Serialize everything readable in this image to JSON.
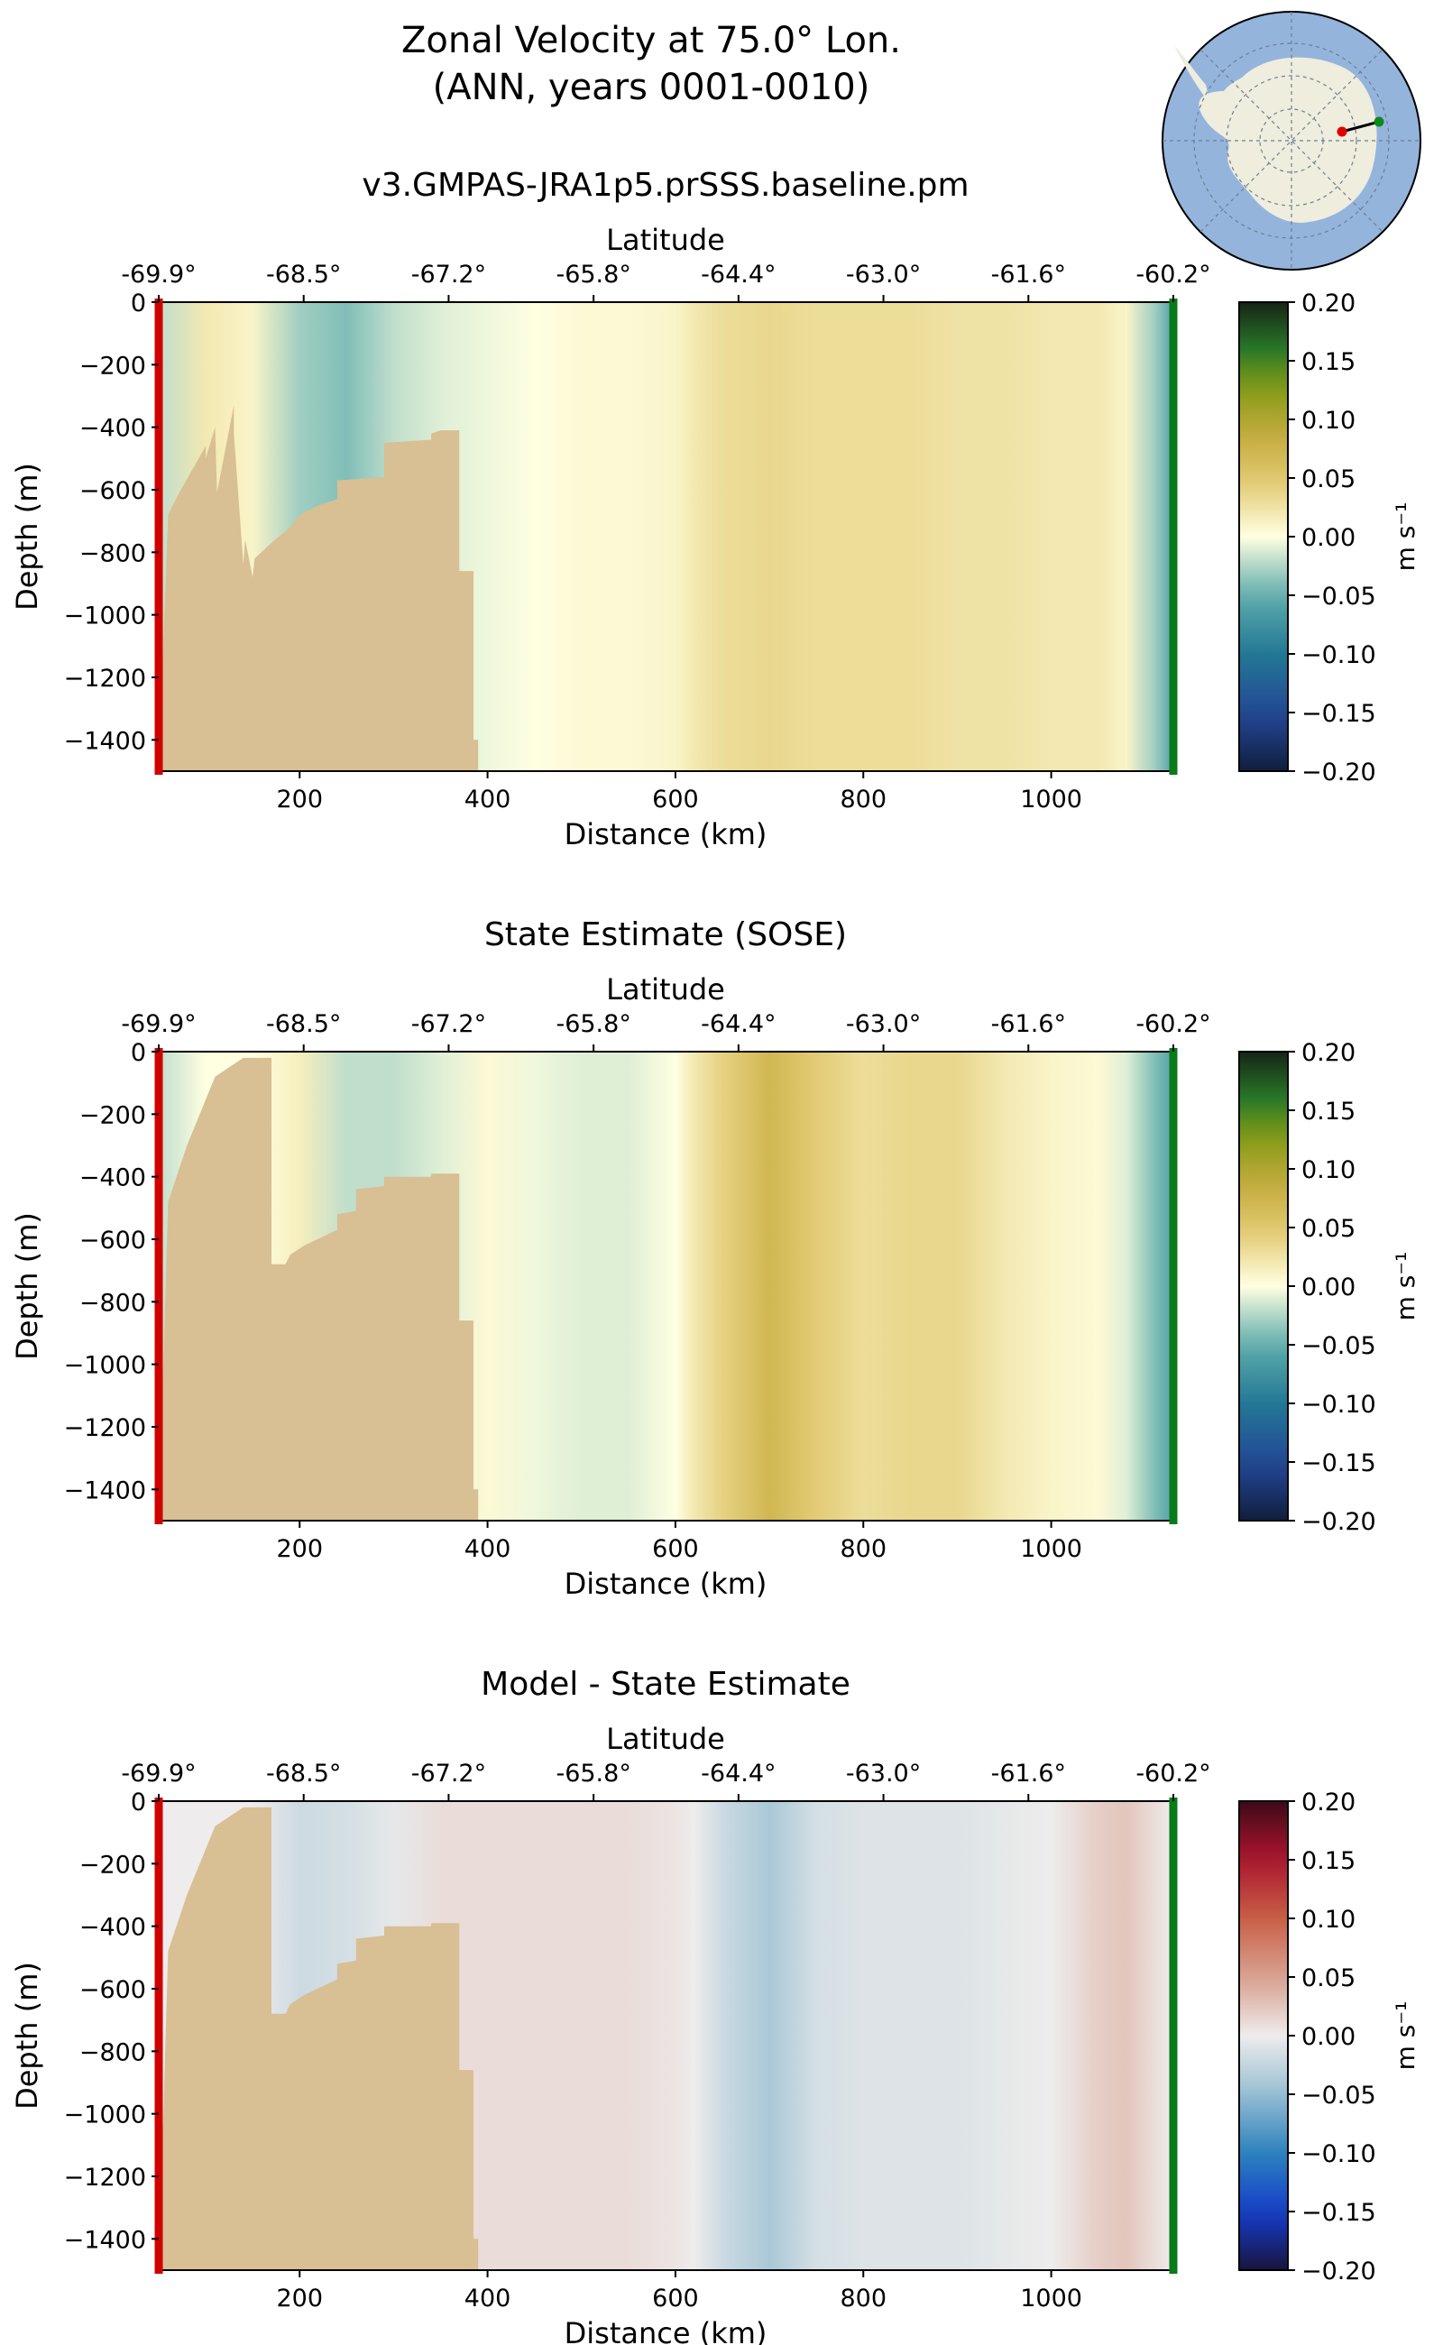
{
  "figure": {
    "title_line1": "Zonal Velocity at 75.0° Lon.",
    "title_line2": "(ANN, years 0001-0010)",
    "colors": {
      "bathymetry": "#d8bf94",
      "start_marker": "#d00000",
      "end_marker": "#0a7a1a",
      "ocean_map": "#94b4dc",
      "land_map": "#eeedde"
    }
  },
  "chart_data": [
    {
      "type": "heatmap",
      "title": "v3.GMPAS-JRA1p5.prSSS.baseline.pm",
      "xlabel": "Distance (km)",
      "ylabel": "Depth (m)",
      "top_xlabel": "Latitude",
      "xlim": [
        50,
        1130
      ],
      "ylim": [
        -1500,
        0
      ],
      "xticks": [
        200,
        400,
        600,
        800,
        1000
      ],
      "yticks": [
        0,
        -200,
        -400,
        -600,
        -800,
        -1000,
        -1200,
        -1400
      ],
      "lat_ticks": [
        "-69.9°",
        "-68.5°",
        "-67.2°",
        "-65.8°",
        "-64.4°",
        "-63.0°",
        "-61.6°",
        "-60.2°"
      ],
      "colorbar": {
        "label": "m s⁻¹",
        "ticks": [
          "0.20",
          "0.15",
          "0.10",
          "0.05",
          "0.00",
          "−0.05",
          "−0.10",
          "−0.15",
          "−0.20"
        ],
        "range": [
          -0.2,
          0.2
        ],
        "colormap": "delta"
      },
      "velocity_profile": {
        "distance_km": [
          50,
          100,
          150,
          200,
          250,
          300,
          350,
          400,
          450,
          500,
          550,
          600,
          620,
          650,
          700,
          750,
          800,
          850,
          900,
          950,
          1000,
          1050,
          1080,
          1110,
          1130
        ],
        "velocity_m_s": [
          -0.02,
          0.02,
          0.01,
          -0.03,
          -0.04,
          -0.02,
          -0.01,
          -0.005,
          0.0,
          0.005,
          0.005,
          0.01,
          0.02,
          0.03,
          0.035,
          0.03,
          0.03,
          0.03,
          0.025,
          0.025,
          0.02,
          0.02,
          0.01,
          -0.03,
          -0.06
        ]
      },
      "bathymetry_profile": {
        "distance_km": [
          50,
          60,
          70,
          100,
          100,
          110,
          112,
          130,
          130,
          140,
          142,
          150,
          152,
          170,
          190,
          200,
          220,
          240,
          240,
          290,
          290,
          340,
          340,
          350,
          370,
          370,
          385,
          385,
          390,
          390
        ],
        "depth_m": [
          -1500,
          -680,
          -620,
          -460,
          -500,
          -400,
          -610,
          -330,
          -420,
          -840,
          -760,
          -880,
          -820,
          -770,
          -720,
          -680,
          -650,
          -630,
          -570,
          -560,
          -450,
          -440,
          -420,
          -410,
          -410,
          -860,
          -860,
          -1400,
          -1400,
          -1500
        ]
      }
    },
    {
      "type": "heatmap",
      "title": "State Estimate (SOSE)",
      "xlabel": "Distance (km)",
      "ylabel": "Depth (m)",
      "top_xlabel": "Latitude",
      "xlim": [
        50,
        1130
      ],
      "ylim": [
        -1500,
        0
      ],
      "xticks": [
        200,
        400,
        600,
        800,
        1000
      ],
      "yticks": [
        0,
        -200,
        -400,
        -600,
        -800,
        -1000,
        -1200,
        -1400
      ],
      "lat_ticks": [
        "-69.9°",
        "-68.5°",
        "-67.2°",
        "-65.8°",
        "-64.4°",
        "-63.0°",
        "-61.6°",
        "-60.2°"
      ],
      "colorbar": {
        "label": "m s⁻¹",
        "ticks": [
          "0.20",
          "0.15",
          "0.10",
          "0.05",
          "0.00",
          "−0.05",
          "−0.10",
          "−0.15",
          "−0.20"
        ],
        "range": [
          -0.2,
          0.2
        ],
        "colormap": "delta"
      },
      "velocity_profile": {
        "distance_km": [
          50,
          100,
          150,
          200,
          250,
          300,
          350,
          400,
          450,
          500,
          550,
          600,
          620,
          650,
          700,
          750,
          800,
          850,
          900,
          950,
          1000,
          1050,
          1080,
          1110,
          1130
        ],
        "velocity_m_s": [
          -0.02,
          0.0,
          0.0,
          0.015,
          -0.02,
          -0.02,
          -0.01,
          0.005,
          -0.005,
          -0.01,
          -0.01,
          0.0,
          0.02,
          0.04,
          0.07,
          0.045,
          0.03,
          0.035,
          0.035,
          0.02,
          0.01,
          0.005,
          -0.01,
          -0.04,
          -0.06
        ]
      },
      "bathymetry_profile": {
        "distance_km": [
          50,
          60,
          80,
          110,
          140,
          170,
          170,
          185,
          190,
          205,
          240,
          240,
          260,
          260,
          290,
          290,
          340,
          340,
          370,
          370,
          385,
          385,
          390,
          390
        ],
        "depth_m": [
          -1500,
          -480,
          -300,
          -80,
          -20,
          -20,
          -680,
          -680,
          -650,
          -620,
          -570,
          -520,
          -510,
          -440,
          -430,
          -400,
          -400,
          -390,
          -390,
          -860,
          -860,
          -1400,
          -1400,
          -1500
        ]
      }
    },
    {
      "type": "heatmap",
      "title": "Model - State Estimate",
      "xlabel": "Distance (km)",
      "ylabel": "Depth (m)",
      "top_xlabel": "Latitude",
      "xlim": [
        50,
        1130
      ],
      "ylim": [
        -1500,
        0
      ],
      "xticks": [
        200,
        400,
        600,
        800,
        1000
      ],
      "yticks": [
        0,
        -200,
        -400,
        -600,
        -800,
        -1000,
        -1200,
        -1400
      ],
      "lat_ticks": [
        "-69.9°",
        "-68.5°",
        "-67.2°",
        "-65.8°",
        "-64.4°",
        "-63.0°",
        "-61.6°",
        "-60.2°"
      ],
      "colorbar": {
        "label": "m s⁻¹",
        "ticks": [
          "0.20",
          "0.15",
          "0.10",
          "0.05",
          "0.00",
          "−0.05",
          "−0.10",
          "−0.15",
          "−0.20"
        ],
        "range": [
          -0.2,
          0.2
        ],
        "colormap": "balance"
      },
      "velocity_profile": {
        "distance_km": [
          50,
          100,
          150,
          200,
          250,
          300,
          350,
          400,
          450,
          500,
          550,
          600,
          620,
          650,
          700,
          750,
          800,
          850,
          900,
          950,
          1000,
          1050,
          1080,
          1110,
          1130
        ],
        "velocity_m_s": [
          0.0,
          0.0,
          0.0,
          -0.02,
          -0.015,
          -0.005,
          0.01,
          0.01,
          0.01,
          0.01,
          0.01,
          0.005,
          0.0,
          -0.02,
          -0.04,
          -0.015,
          -0.01,
          -0.01,
          -0.01,
          -0.005,
          0.0,
          0.02,
          0.025,
          0.01,
          0.0
        ]
      },
      "bathymetry_profile": {
        "distance_km": [
          50,
          60,
          80,
          110,
          140,
          170,
          170,
          185,
          190,
          205,
          240,
          240,
          260,
          260,
          290,
          290,
          340,
          340,
          370,
          370,
          385,
          385,
          390,
          390
        ],
        "depth_m": [
          -1500,
          -480,
          -300,
          -80,
          -20,
          -20,
          -680,
          -680,
          -650,
          -620,
          -570,
          -520,
          -510,
          -440,
          -430,
          -400,
          -400,
          -390,
          -390,
          -860,
          -860,
          -1400,
          -1400,
          -1500
        ]
      }
    }
  ]
}
